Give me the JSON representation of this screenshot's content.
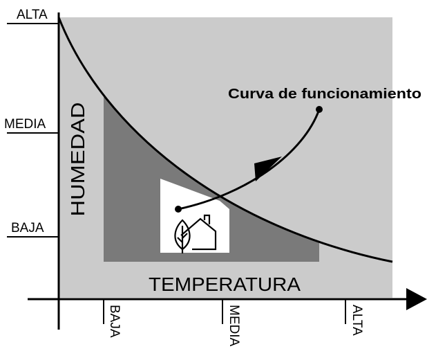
{
  "axes": {
    "y_label": "HUMEDAD",
    "x_label": "TEMPERATURA",
    "y_levels": [
      "ALTA",
      "MEDIA",
      "BAJA"
    ],
    "x_levels": [
      "BAJA",
      "MEDIA",
      "ALTA"
    ]
  },
  "annotation": "Curva de funcionamiento"
}
